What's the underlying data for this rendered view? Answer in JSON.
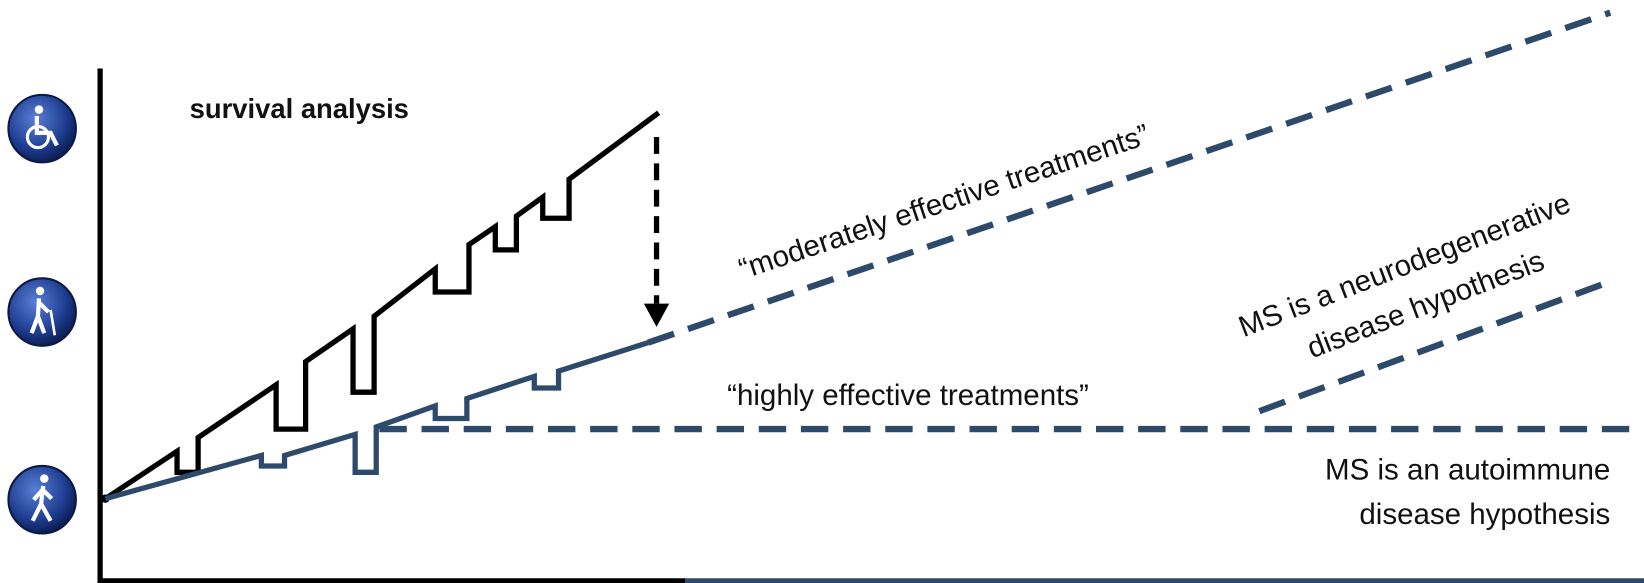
{
  "title": "survival analysis",
  "curves": {
    "moderate": "“moderately effective treatments”",
    "high": "“highly effective treatments”"
  },
  "hypotheses": {
    "neurodegenerative": [
      "MS is a neurodegenerative",
      "disease hypothesis"
    ],
    "autoimmune": [
      "MS is an autoimmune",
      "disease hypothesis"
    ]
  }
}
